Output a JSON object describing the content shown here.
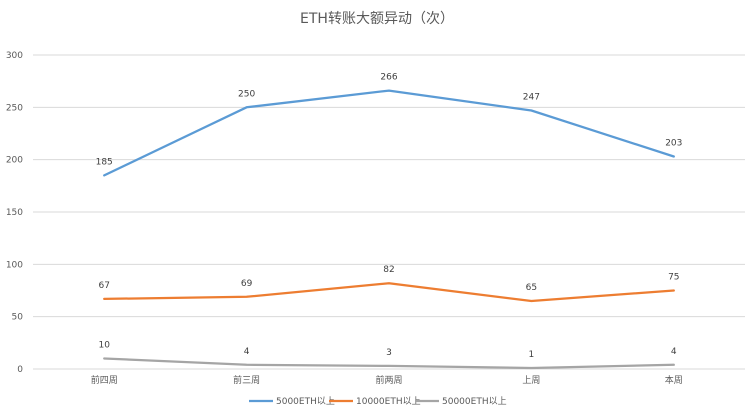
{
  "chart_data": {
    "type": "line",
    "title": "ETH转账大额异动（次）",
    "categories": [
      "前四周",
      "前三周",
      "前两周",
      "上周",
      "本周"
    ],
    "ylim": [
      0,
      300
    ],
    "yticks": [
      0,
      50,
      100,
      150,
      200,
      250,
      300
    ],
    "grid": true,
    "legend_position": "bottom",
    "series": [
      {
        "name": "5000ETH以上",
        "color": "#5b9bd5",
        "values": [
          185,
          250,
          266,
          247,
          203
        ]
      },
      {
        "name": "10000ETH以上",
        "color": "#ed7d31",
        "values": [
          67,
          69,
          82,
          65,
          75
        ]
      },
      {
        "name": "50000ETH以上",
        "color": "#a5a5a5",
        "values": [
          10,
          4,
          3,
          1,
          4
        ]
      }
    ]
  }
}
